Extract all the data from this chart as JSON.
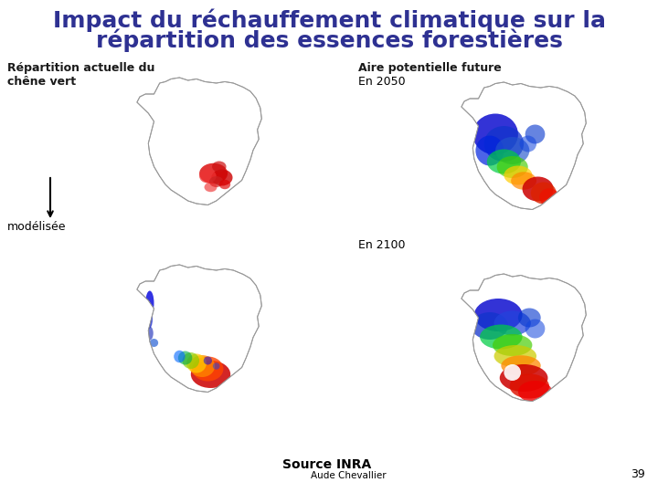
{
  "title_line1": "Impact du réchauffement climatique sur la",
  "title_line2": "répartition des essences forestières",
  "title_color": "#2e3192",
  "title_fontsize": 18,
  "label_left_top": "Répartition actuelle du\nchêne vert",
  "label_right_top_bold": "Aire potentielle future",
  "label_right_top_year1": "En 2050",
  "label_right_year2": "En 2100",
  "label_arrow": "modélisée",
  "label_source": "Source INRA",
  "label_aude": "Aude Chevallier",
  "label_page": "39",
  "bg_color": "#ffffff",
  "text_color": "#000000",
  "label_color_bold": "#1a1a1a",
  "label_color_dark": "#2e3192"
}
